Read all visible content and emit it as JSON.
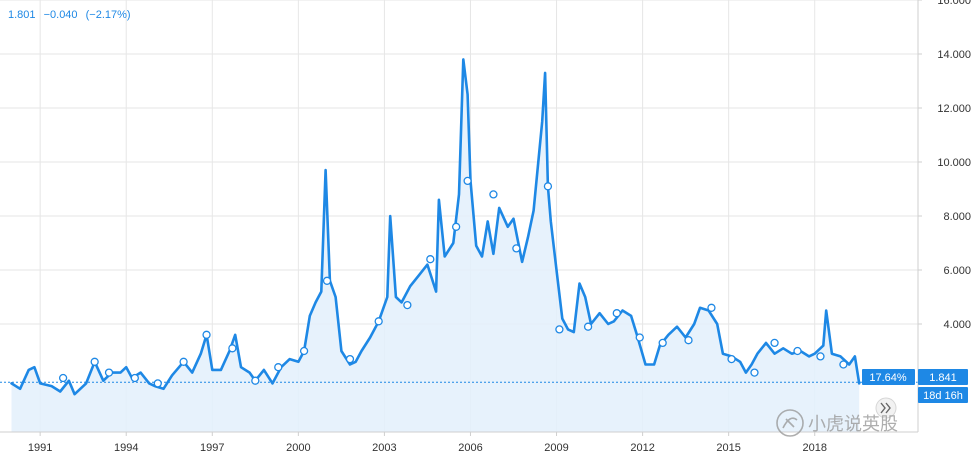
{
  "legend": {
    "value": "1.801",
    "change": "−0.040",
    "pct": "(−2.17%)"
  },
  "price_badge": "1.841",
  "pct_badge": "17.64%",
  "time_badge": "18d 16h",
  "watermark": "小虎说英股",
  "colors": {
    "line": "#1e88e5",
    "fill": "#e3f0fb",
    "grid": "#e6e6e6",
    "badge": "#1e88e5"
  },
  "chart_data": {
    "type": "area",
    "title": "",
    "xlabel": "",
    "ylabel": "",
    "xlim": [
      1989.6,
      2021.6
    ],
    "ylim": [
      0,
      16
    ],
    "x_ticks": [
      "1991",
      "1994",
      "1997",
      "2000",
      "2003",
      "2006",
      "2009",
      "2012",
      "2015",
      "2018"
    ],
    "y_ticks": [
      "4.000",
      "6.000",
      "8.000",
      "10.000",
      "12.000",
      "14.000",
      "16.000"
    ],
    "reference_line": 1.841,
    "series": [
      {
        "values": [
          [
            1990.0,
            1.8
          ],
          [
            1990.3,
            1.6
          ],
          [
            1990.6,
            2.3
          ],
          [
            1990.8,
            2.4
          ],
          [
            1991.0,
            1.8
          ],
          [
            1991.4,
            1.7
          ],
          [
            1991.7,
            1.5
          ],
          [
            1992.0,
            1.9
          ],
          [
            1992.2,
            1.4
          ],
          [
            1992.6,
            1.8
          ],
          [
            1992.9,
            2.6
          ],
          [
            1993.2,
            1.9
          ],
          [
            1993.5,
            2.2
          ],
          [
            1993.8,
            2.2
          ],
          [
            1994.0,
            2.4
          ],
          [
            1994.2,
            2.0
          ],
          [
            1994.5,
            2.2
          ],
          [
            1994.8,
            1.8
          ],
          [
            1995.0,
            1.7
          ],
          [
            1995.3,
            1.6
          ],
          [
            1995.6,
            2.1
          ],
          [
            1996.0,
            2.6
          ],
          [
            1996.3,
            2.2
          ],
          [
            1996.6,
            2.9
          ],
          [
            1996.8,
            3.6
          ],
          [
            1997.0,
            2.3
          ],
          [
            1997.3,
            2.3
          ],
          [
            1997.6,
            3.0
          ],
          [
            1997.8,
            3.6
          ],
          [
            1998.0,
            2.4
          ],
          [
            1998.3,
            2.2
          ],
          [
            1998.5,
            1.9
          ],
          [
            1998.8,
            2.3
          ],
          [
            1999.1,
            1.8
          ],
          [
            1999.4,
            2.4
          ],
          [
            1999.7,
            2.7
          ],
          [
            2000.0,
            2.6
          ],
          [
            2000.2,
            3.0
          ],
          [
            2000.4,
            4.3
          ],
          [
            2000.6,
            4.8
          ],
          [
            2000.8,
            5.2
          ],
          [
            2000.95,
            9.7
          ],
          [
            2001.1,
            5.6
          ],
          [
            2001.3,
            5.0
          ],
          [
            2001.5,
            3.0
          ],
          [
            2001.8,
            2.5
          ],
          [
            2002.0,
            2.6
          ],
          [
            2002.2,
            3.0
          ],
          [
            2002.5,
            3.5
          ],
          [
            2002.8,
            4.1
          ],
          [
            2003.1,
            5.0
          ],
          [
            2003.2,
            8.0
          ],
          [
            2003.4,
            5.0
          ],
          [
            2003.6,
            4.8
          ],
          [
            2003.9,
            5.4
          ],
          [
            2004.2,
            5.8
          ],
          [
            2004.5,
            6.2
          ],
          [
            2004.8,
            5.2
          ],
          [
            2004.9,
            8.6
          ],
          [
            2005.1,
            6.5
          ],
          [
            2005.4,
            7.0
          ],
          [
            2005.6,
            8.8
          ],
          [
            2005.75,
            13.8
          ],
          [
            2005.9,
            12.5
          ],
          [
            2006.0,
            9.3
          ],
          [
            2006.2,
            6.9
          ],
          [
            2006.4,
            6.5
          ],
          [
            2006.6,
            7.8
          ],
          [
            2006.8,
            6.6
          ],
          [
            2007.0,
            8.3
          ],
          [
            2007.3,
            7.6
          ],
          [
            2007.5,
            7.9
          ],
          [
            2007.8,
            6.3
          ],
          [
            2008.0,
            7.2
          ],
          [
            2008.2,
            8.2
          ],
          [
            2008.5,
            11.5
          ],
          [
            2008.6,
            13.3
          ],
          [
            2008.7,
            9.1
          ],
          [
            2008.8,
            7.8
          ],
          [
            2009.0,
            6.0
          ],
          [
            2009.2,
            4.2
          ],
          [
            2009.4,
            3.8
          ],
          [
            2009.6,
            3.7
          ],
          [
            2009.8,
            5.5
          ],
          [
            2010.0,
            5.0
          ],
          [
            2010.2,
            4.0
          ],
          [
            2010.5,
            4.4
          ],
          [
            2010.8,
            4.0
          ],
          [
            2011.0,
            4.1
          ],
          [
            2011.3,
            4.5
          ],
          [
            2011.6,
            4.3
          ],
          [
            2011.8,
            3.6
          ],
          [
            2012.1,
            2.5
          ],
          [
            2012.4,
            2.5
          ],
          [
            2012.6,
            3.2
          ],
          [
            2012.9,
            3.6
          ],
          [
            2013.2,
            3.9
          ],
          [
            2013.5,
            3.5
          ],
          [
            2013.8,
            4.0
          ],
          [
            2014.0,
            4.6
          ],
          [
            2014.3,
            4.5
          ],
          [
            2014.6,
            4.0
          ],
          [
            2014.8,
            2.9
          ],
          [
            2015.1,
            2.8
          ],
          [
            2015.4,
            2.6
          ],
          [
            2015.6,
            2.2
          ],
          [
            2015.8,
            2.5
          ],
          [
            2016.0,
            2.9
          ],
          [
            2016.3,
            3.3
          ],
          [
            2016.6,
            2.9
          ],
          [
            2016.9,
            3.1
          ],
          [
            2017.2,
            2.9
          ],
          [
            2017.5,
            3.0
          ],
          [
            2017.8,
            2.8
          ],
          [
            2018.0,
            2.9
          ],
          [
            2018.3,
            3.2
          ],
          [
            2018.4,
            4.5
          ],
          [
            2018.6,
            2.9
          ],
          [
            2018.9,
            2.8
          ],
          [
            2019.2,
            2.5
          ],
          [
            2019.4,
            2.8
          ],
          [
            2019.55,
            1.8
          ]
        ]
      }
    ],
    "markers": [
      [
        1991.8,
        2.0
      ],
      [
        1992.9,
        2.6
      ],
      [
        1993.4,
        2.2
      ],
      [
        1994.3,
        2.0
      ],
      [
        1995.1,
        1.8
      ],
      [
        1996.0,
        2.6
      ],
      [
        1996.8,
        3.6
      ],
      [
        1997.7,
        3.1
      ],
      [
        1998.5,
        1.9
      ],
      [
        1999.3,
        2.4
      ],
      [
        2000.2,
        3.0
      ],
      [
        2001.0,
        5.6
      ],
      [
        2001.8,
        2.7
      ],
      [
        2002.8,
        4.1
      ],
      [
        2003.8,
        4.7
      ],
      [
        2004.6,
        6.4
      ],
      [
        2005.5,
        7.6
      ],
      [
        2005.9,
        9.3
      ],
      [
        2006.8,
        8.8
      ],
      [
        2007.6,
        6.8
      ],
      [
        2008.7,
        9.1
      ],
      [
        2009.1,
        3.8
      ],
      [
        2010.1,
        3.9
      ],
      [
        2011.1,
        4.4
      ],
      [
        2011.9,
        3.5
      ],
      [
        2012.7,
        3.3
      ],
      [
        2013.6,
        3.4
      ],
      [
        2014.4,
        4.6
      ],
      [
        2015.1,
        2.7
      ],
      [
        2015.9,
        2.2
      ],
      [
        2016.6,
        3.3
      ],
      [
        2017.4,
        3.0
      ],
      [
        2018.2,
        2.8
      ],
      [
        2019.0,
        2.5
      ]
    ]
  }
}
